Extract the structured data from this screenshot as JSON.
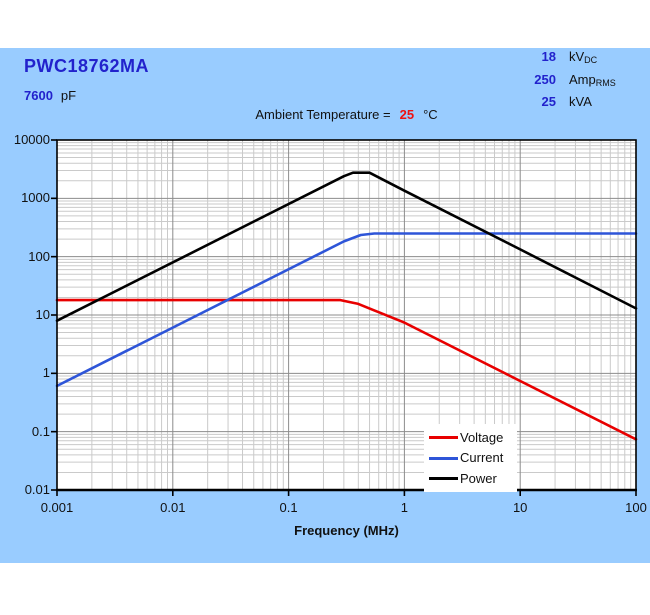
{
  "header": {
    "part_number": "PWC18762MA",
    "capacitance_value": "7600",
    "capacitance_unit": "pF",
    "ambient_label": "Ambient Temperature =",
    "ambient_value": "25",
    "ambient_unit": "°C",
    "ratings": [
      {
        "value": "18",
        "unit": "kV",
        "unit_sub": "DC"
      },
      {
        "value": "250",
        "unit": "Amp",
        "unit_sub": "RMS"
      },
      {
        "value": "25",
        "unit": "kVA",
        "unit_sub": ""
      }
    ]
  },
  "colors": {
    "panel_background": "#99ccff",
    "accent_blue": "#2222cc",
    "accent_red": "#ee1111",
    "grid_minor": "#cacaca",
    "grid_major": "#8c8c8c",
    "axis": "#000000",
    "plot_background": "#ffffff"
  },
  "chart_data": {
    "type": "line",
    "title": "",
    "xlabel": "Frequency (MHz)",
    "ylabel": "",
    "x_scale": "log",
    "y_scale": "log",
    "xlim": [
      0.001,
      100
    ],
    "ylim": [
      0.01,
      10000
    ],
    "x_tick_labels": [
      "0.001",
      "0.01",
      "0.1",
      "1",
      "10",
      "100"
    ],
    "y_tick_labels": [
      "10000",
      "1000",
      "100",
      "10",
      "1",
      "0.1",
      "0.01"
    ],
    "grid": true,
    "legend_position": "lower right",
    "series": [
      {
        "name": "Voltage",
        "color": "#e80000",
        "points": [
          [
            0.001,
            18
          ],
          [
            0.28,
            18
          ],
          [
            0.4,
            15.5
          ],
          [
            0.55,
            12
          ],
          [
            1,
            7.4
          ],
          [
            10,
            0.74
          ],
          [
            100,
            0.074
          ]
        ]
      },
      {
        "name": "Current",
        "color": "#2e55d8",
        "points": [
          [
            0.001,
            0.61
          ],
          [
            0.3,
            183
          ],
          [
            0.42,
            235
          ],
          [
            0.55,
            250
          ],
          [
            100,
            250
          ]
        ]
      },
      {
        "name": "Power",
        "color": "#000000",
        "points": [
          [
            0.001,
            8
          ],
          [
            0.3,
            2400
          ],
          [
            0.36,
            2750
          ],
          [
            0.5,
            2750
          ],
          [
            1,
            1350
          ],
          [
            10,
            133
          ],
          [
            100,
            13
          ]
        ]
      }
    ]
  }
}
